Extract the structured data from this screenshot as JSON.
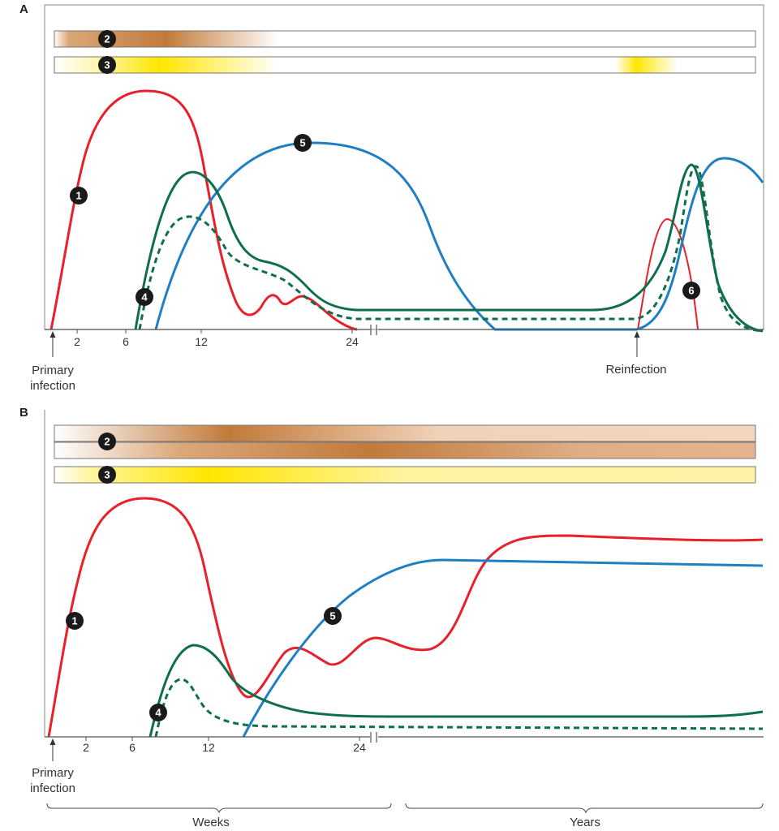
{
  "panels": [
    {
      "letter": "A",
      "bars": [
        {
          "badge": "2",
          "kind": "brown"
        },
        {
          "badge": "3",
          "kind": "yellow"
        }
      ],
      "x_ticks": [
        "2",
        "6",
        "12",
        "24"
      ],
      "annotations": {
        "primary_line1": "Primary",
        "primary_line2": "infection",
        "reinfection": "Reinfection"
      },
      "curve_badges": [
        "1",
        "5",
        "4",
        "6"
      ]
    },
    {
      "letter": "B",
      "bars": [
        {
          "badge": "2",
          "kind": "brown"
        },
        {
          "badge": "3",
          "kind": "yellow"
        }
      ],
      "x_ticks": [
        "2",
        "6",
        "12",
        "24"
      ],
      "annotations": {
        "primary_line1": "Primary",
        "primary_line2": "infection"
      },
      "curve_badges": [
        "1",
        "5",
        "4"
      ],
      "time_scale": {
        "weeks": "Weeks",
        "years": "Years"
      }
    }
  ],
  "colors": {
    "red": "#e8202a",
    "blue": "#1f7fc4",
    "green": "#0e6e4e",
    "brown": "#c27a3a",
    "yellow": "#ffe600",
    "badge": "#1a1a1a",
    "frame": "#999999"
  }
}
